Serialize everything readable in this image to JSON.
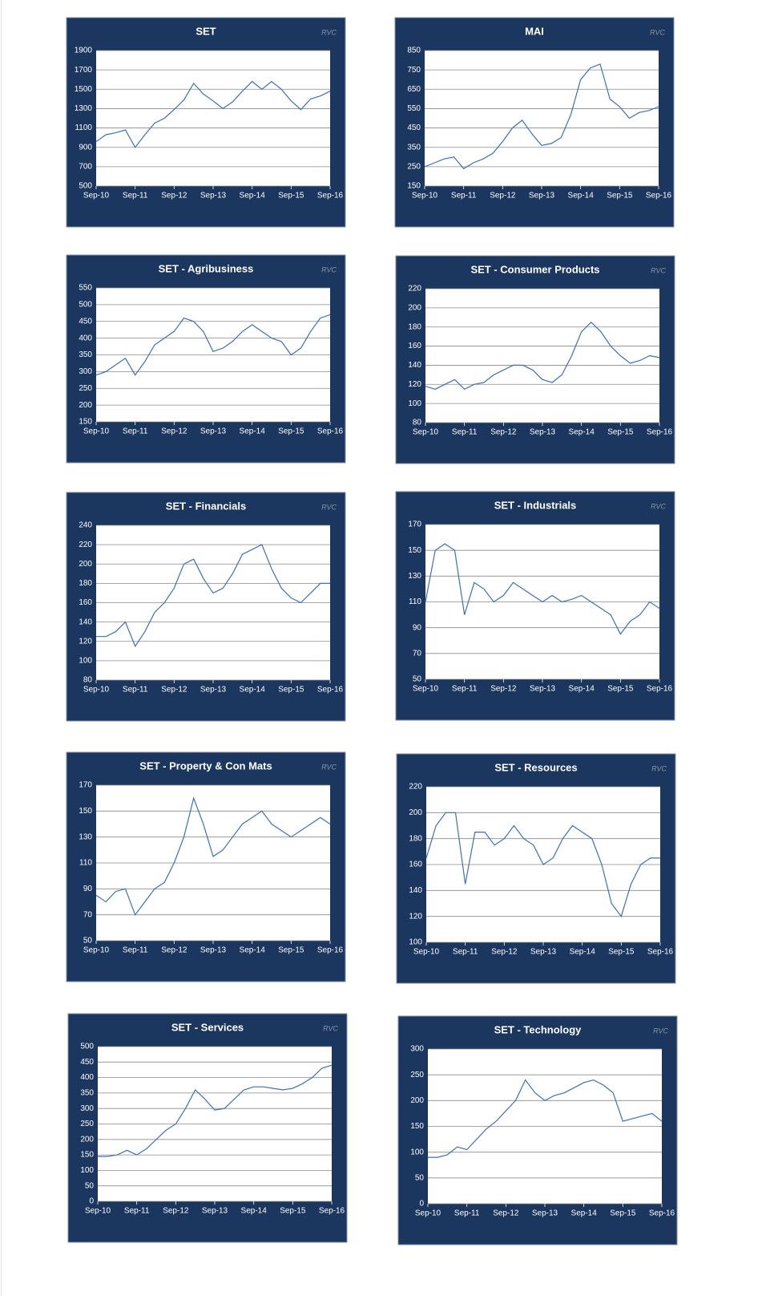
{
  "chart_data": [
    {
      "type": "line",
      "title": "SET",
      "watermark": "RVC",
      "categories": [
        "Sep-10",
        null,
        null,
        null,
        "Sep-11",
        null,
        null,
        null,
        "Sep-12",
        null,
        null,
        null,
        "Sep-13",
        null,
        null,
        null,
        "Sep-14",
        null,
        null,
        null,
        "Sep-15",
        null,
        null,
        null,
        "Sep-16"
      ],
      "values": [
        960,
        1030,
        1050,
        1080,
        900,
        1030,
        1150,
        1200,
        1290,
        1390,
        1560,
        1450,
        1380,
        1300,
        1370,
        1480,
        1580,
        1500,
        1580,
        1500,
        1380,
        1290,
        1400,
        1430,
        1480
      ],
      "color": "#3d6fb6",
      "ylim": [
        500,
        1900
      ],
      "yticks": [
        500,
        700,
        900,
        1100,
        1300,
        1500,
        1700,
        1900
      ],
      "grid": true
    },
    {
      "type": "line",
      "title": "MAI",
      "watermark": "RVC",
      "categories": [
        "Sep-10",
        null,
        null,
        null,
        "Sep-11",
        null,
        null,
        null,
        "Sep-12",
        null,
        null,
        null,
        "Sep-13",
        null,
        null,
        null,
        "Sep-14",
        null,
        null,
        null,
        "Sep-15",
        null,
        null,
        null,
        "Sep-16"
      ],
      "values": [
        250,
        270,
        290,
        300,
        240,
        270,
        290,
        320,
        380,
        450,
        490,
        420,
        360,
        370,
        400,
        520,
        700,
        760,
        780,
        600,
        560,
        500,
        530,
        540,
        560
      ],
      "color": "#3d6fb6",
      "ylim": [
        150,
        850
      ],
      "yticks": [
        150,
        250,
        350,
        450,
        550,
        650,
        750,
        850
      ],
      "grid": true
    },
    {
      "type": "line",
      "title": "SET - Agribusiness",
      "watermark": "RVC",
      "categories": [
        "Sep-10",
        null,
        null,
        null,
        "Sep-11",
        null,
        null,
        null,
        "Sep-12",
        null,
        null,
        null,
        "Sep-13",
        null,
        null,
        null,
        "Sep-14",
        null,
        null,
        null,
        "Sep-15",
        null,
        null,
        null,
        "Sep-16"
      ],
      "values": [
        290,
        300,
        320,
        340,
        290,
        330,
        380,
        400,
        420,
        460,
        450,
        420,
        360,
        370,
        390,
        420,
        440,
        420,
        400,
        390,
        350,
        370,
        420,
        460,
        470
      ],
      "color": "#3d6fb6",
      "ylim": [
        150,
        550
      ],
      "yticks": [
        150,
        200,
        250,
        300,
        350,
        400,
        450,
        500,
        550
      ],
      "grid": true
    },
    {
      "type": "line",
      "title": "SET - Consumer Products",
      "watermark": "RVC",
      "categories": [
        "Sep-10",
        null,
        null,
        null,
        "Sep-11",
        null,
        null,
        null,
        "Sep-12",
        null,
        null,
        null,
        "Sep-13",
        null,
        null,
        null,
        "Sep-14",
        null,
        null,
        null,
        "Sep-15",
        null,
        null,
        null,
        "Sep-16"
      ],
      "values": [
        118,
        115,
        120,
        125,
        115,
        120,
        122,
        130,
        135,
        140,
        140,
        135,
        125,
        122,
        130,
        150,
        175,
        185,
        175,
        160,
        150,
        142,
        145,
        150,
        148
      ],
      "color": "#3d6fb6",
      "ylim": [
        80,
        220
      ],
      "yticks": [
        80,
        100,
        120,
        140,
        160,
        180,
        200,
        220
      ],
      "grid": true
    },
    {
      "type": "line",
      "title": "SET - Financials",
      "watermark": "RVC",
      "categories": [
        "Sep-10",
        null,
        null,
        null,
        "Sep-11",
        null,
        null,
        null,
        "Sep-12",
        null,
        null,
        null,
        "Sep-13",
        null,
        null,
        null,
        "Sep-14",
        null,
        null,
        null,
        "Sep-15",
        null,
        null,
        null,
        "Sep-16"
      ],
      "values": [
        125,
        125,
        130,
        140,
        115,
        130,
        150,
        160,
        175,
        200,
        205,
        185,
        170,
        175,
        190,
        210,
        215,
        220,
        195,
        175,
        165,
        160,
        170,
        180,
        180
      ],
      "color": "#3d6fb6",
      "ylim": [
        80,
        240
      ],
      "yticks": [
        80,
        100,
        120,
        140,
        160,
        180,
        200,
        220,
        240
      ],
      "grid": true
    },
    {
      "type": "line",
      "title": "SET - Industrials",
      "watermark": "RVC",
      "categories": [
        "Sep-10",
        null,
        null,
        null,
        "Sep-11",
        null,
        null,
        null,
        "Sep-12",
        null,
        null,
        null,
        "Sep-13",
        null,
        null,
        null,
        "Sep-14",
        null,
        null,
        null,
        "Sep-15",
        null,
        null,
        null,
        "Sep-16"
      ],
      "values": [
        110,
        150,
        155,
        150,
        100,
        125,
        120,
        110,
        115,
        125,
        120,
        115,
        110,
        115,
        110,
        112,
        115,
        110,
        105,
        100,
        85,
        95,
        100,
        110,
        105
      ],
      "color": "#3d6fb6",
      "ylim": [
        50,
        170
      ],
      "yticks": [
        50,
        70,
        90,
        110,
        130,
        150,
        170
      ],
      "grid": true
    },
    {
      "type": "line",
      "title": "SET - Property & Con Mats",
      "watermark": "RVC",
      "categories": [
        "Sep-10",
        null,
        null,
        null,
        "Sep-11",
        null,
        null,
        null,
        "Sep-12",
        null,
        null,
        null,
        "Sep-13",
        null,
        null,
        null,
        "Sep-14",
        null,
        null,
        null,
        "Sep-15",
        null,
        null,
        null,
        "Sep-16"
      ],
      "values": [
        85,
        80,
        88,
        90,
        70,
        80,
        90,
        95,
        110,
        130,
        160,
        140,
        115,
        120,
        130,
        140,
        145,
        150,
        140,
        135,
        130,
        135,
        140,
        145,
        140
      ],
      "color": "#3d6fb6",
      "ylim": [
        50,
        170
      ],
      "yticks": [
        50,
        70,
        90,
        110,
        130,
        150,
        170
      ],
      "grid": true
    },
    {
      "type": "line",
      "title": "SET - Resources",
      "watermark": "RVC",
      "categories": [
        "Sep-10",
        null,
        null,
        null,
        "Sep-11",
        null,
        null,
        null,
        "Sep-12",
        null,
        null,
        null,
        "Sep-13",
        null,
        null,
        null,
        "Sep-14",
        null,
        null,
        null,
        "Sep-15",
        null,
        null,
        null,
        "Sep-16"
      ],
      "values": [
        165,
        190,
        200,
        200,
        145,
        185,
        185,
        175,
        180,
        190,
        180,
        175,
        160,
        165,
        180,
        190,
        185,
        180,
        160,
        130,
        120,
        145,
        160,
        165,
        165
      ],
      "color": "#3d6fb6",
      "ylim": [
        100,
        220
      ],
      "yticks": [
        100,
        120,
        140,
        160,
        180,
        200,
        220
      ],
      "grid": true
    },
    {
      "type": "line",
      "title": "SET - Services",
      "watermark": "RVC",
      "categories": [
        "Sep-10",
        null,
        null,
        null,
        "Sep-11",
        null,
        null,
        null,
        "Sep-12",
        null,
        null,
        null,
        "Sep-13",
        null,
        null,
        null,
        "Sep-14",
        null,
        null,
        null,
        "Sep-15",
        null,
        null,
        null,
        "Sep-16"
      ],
      "values": [
        145,
        145,
        150,
        165,
        150,
        170,
        200,
        230,
        250,
        300,
        360,
        330,
        295,
        300,
        330,
        360,
        370,
        370,
        365,
        360,
        365,
        380,
        400,
        430,
        440
      ],
      "color": "#3d6fb6",
      "ylim": [
        0,
        500
      ],
      "yticks": [
        0,
        50,
        100,
        150,
        200,
        250,
        300,
        350,
        400,
        450,
        500
      ],
      "grid": true
    },
    {
      "type": "line",
      "title": "SET - Technology",
      "watermark": "RVC",
      "categories": [
        "Sep-10",
        null,
        null,
        null,
        "Sep-11",
        null,
        null,
        null,
        "Sep-12",
        null,
        null,
        null,
        "Sep-13",
        null,
        null,
        null,
        "Sep-14",
        null,
        null,
        null,
        "Sep-15",
        null,
        null,
        null,
        "Sep-16"
      ],
      "values": [
        90,
        90,
        95,
        110,
        105,
        125,
        145,
        160,
        180,
        200,
        240,
        215,
        200,
        210,
        215,
        225,
        235,
        240,
        230,
        215,
        160,
        165,
        170,
        175,
        160
      ],
      "color": "#3d6fb6",
      "ylim": [
        0,
        300
      ],
      "yticks": [
        0,
        50,
        100,
        150,
        200,
        250,
        300
      ],
      "grid": true
    }
  ]
}
